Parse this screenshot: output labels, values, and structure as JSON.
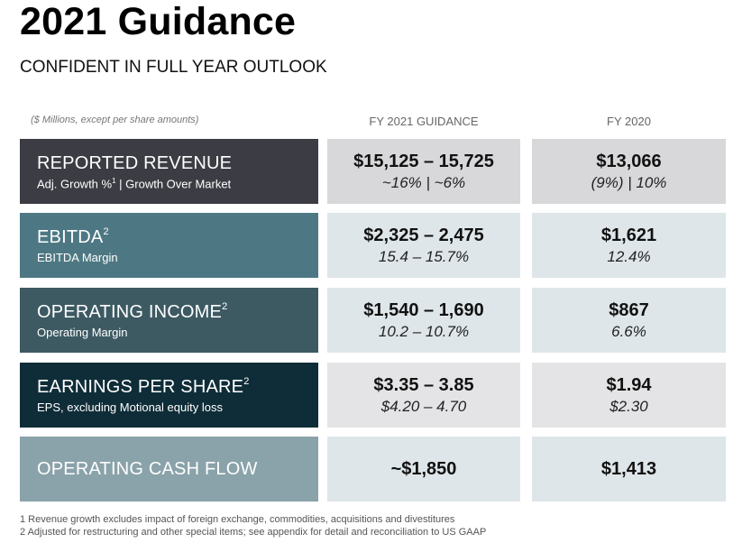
{
  "title": "2021 Guidance",
  "subtitle": "CONFIDENT IN FULL YEAR OUTLOOK",
  "units_note": "($ Millions, except per share amounts)",
  "columns": {
    "guidance": "FY 2021 GUIDANCE",
    "prior": "FY 2020"
  },
  "rows": [
    {
      "label": "REPORTED REVENUE",
      "label_sup": "",
      "sub_pre": "Adj. Growth %",
      "sub_sup": "1",
      "sub_post": " | Growth Over Market",
      "guidance": "$15,125 – 15,725",
      "guidance_sub": "~16% | ~6%",
      "prior": "$13,066",
      "prior_sub": "(9%) | 10%"
    },
    {
      "label": "EBITDA",
      "label_sup": "2",
      "sub_pre": "EBITDA Margin",
      "sub_sup": "",
      "sub_post": "",
      "guidance": "$2,325 – 2,475",
      "guidance_sub": "15.4 – 15.7%",
      "prior": "$1,621",
      "prior_sub": "12.4%"
    },
    {
      "label": "OPERATING INCOME",
      "label_sup": "2",
      "sub_pre": "Operating Margin",
      "sub_sup": "",
      "sub_post": "",
      "guidance": "$1,540 – 1,690",
      "guidance_sub": "10.2 – 10.7%",
      "prior": "$867",
      "prior_sub": "6.6%"
    },
    {
      "label": "EARNINGS PER SHARE",
      "label_sup": "2",
      "sub_pre": "EPS, excluding Motional equity loss",
      "sub_sup": "",
      "sub_post": "",
      "guidance": "$3.35 – 3.85",
      "guidance_sub": "$4.20 – 4.70",
      "prior": "$1.94",
      "prior_sub": "$2.30"
    },
    {
      "label": "OPERATING CASH FLOW",
      "label_sup": "",
      "sub_pre": "",
      "sub_sup": "",
      "sub_post": "",
      "guidance": "~$1,850",
      "guidance_sub": "",
      "prior": "$1,413",
      "prior_sub": ""
    }
  ],
  "footnotes": [
    "1  Revenue growth excludes impact of foreign exchange, commodities, acquisitions and divestitures",
    "2  Adjusted for restructuring and other special items; see appendix for detail and reconciliation to US GAAP"
  ],
  "colors": {
    "row_labels": [
      "#3c3d44",
      "#4d7883",
      "#3d5a63",
      "#0f2d38",
      "#8aa2aa"
    ],
    "row_cells": [
      "#d8d8da",
      "#dfe6e9",
      "#dfe6e9",
      "#e4e4e6",
      "#dfe6e9"
    ]
  }
}
